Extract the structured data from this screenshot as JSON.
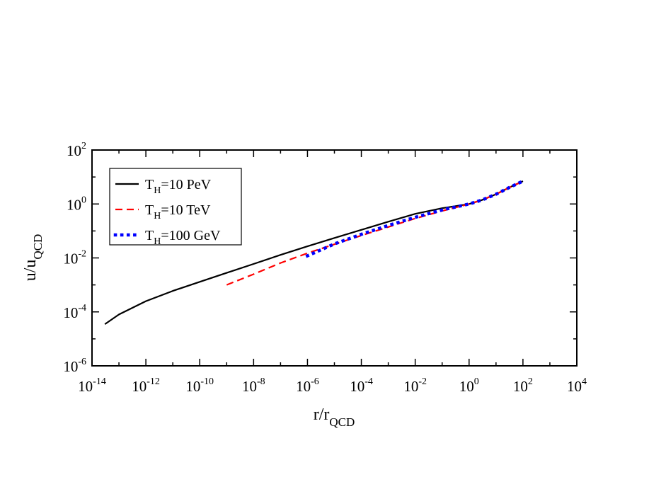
{
  "chart_data": {
    "type": "line",
    "xscale": "log",
    "yscale": "log",
    "xlim": [
      1e-14,
      10000.0
    ],
    "ylim": [
      1e-06,
      100.0
    ],
    "xlabel": {
      "main": "r/r",
      "sub": "QCD"
    },
    "ylabel": {
      "main": "u/u",
      "sub": "QCD"
    },
    "xticks": [
      {
        "value": 1e-14,
        "base": "10",
        "exp": "-14"
      },
      {
        "value": 1e-12,
        "base": "10",
        "exp": "-12"
      },
      {
        "value": 1e-10,
        "base": "10",
        "exp": "-10"
      },
      {
        "value": 1e-08,
        "base": "10",
        "exp": "-8"
      },
      {
        "value": 1e-06,
        "base": "10",
        "exp": "-6"
      },
      {
        "value": 0.0001,
        "base": "10",
        "exp": "-4"
      },
      {
        "value": 0.01,
        "base": "10",
        "exp": "-2"
      },
      {
        "value": 1,
        "base": "10",
        "exp": "0"
      },
      {
        "value": 100.0,
        "base": "10",
        "exp": "2"
      },
      {
        "value": 10000.0,
        "base": "10",
        "exp": "4"
      }
    ],
    "yticks": [
      {
        "value": 1e-06,
        "base": "10",
        "exp": "-6"
      },
      {
        "value": 0.0001,
        "base": "10",
        "exp": "-4"
      },
      {
        "value": 0.01,
        "base": "10",
        "exp": "-2"
      },
      {
        "value": 1,
        "base": "10",
        "exp": "0"
      },
      {
        "value": 100.0,
        "base": "10",
        "exp": "2"
      }
    ],
    "grid": false,
    "legend_position": "top-left",
    "series": [
      {
        "name": "T_H=10 PeV",
        "label_main": "T",
        "label_sub": "H",
        "label_rest": "=10 PeV",
        "color": "#000000",
        "style": "solid",
        "x": [
          3e-14,
          1e-13,
          1e-12,
          1e-11,
          1e-10,
          1e-09,
          1e-08,
          1e-07,
          1e-06,
          1e-05,
          0.0001,
          0.001,
          0.01,
          0.1,
          1,
          3,
          10,
          30,
          100
        ],
        "y": [
          3.5e-05,
          8e-05,
          0.00025,
          0.0006,
          0.0013,
          0.0028,
          0.006,
          0.013,
          0.027,
          0.055,
          0.11,
          0.22,
          0.43,
          0.7,
          1.0,
          1.4,
          2.3,
          4.0,
          7.0
        ]
      },
      {
        "name": "T_H=10 TeV",
        "label_main": "T",
        "label_sub": "H",
        "label_rest": "=10 TeV",
        "color": "#ff0000",
        "style": "dashed",
        "x": [
          1e-09,
          1e-08,
          1e-07,
          1e-06,
          1e-05,
          0.0001,
          0.001,
          0.01,
          0.1,
          1,
          3,
          10,
          30,
          100
        ],
        "y": [
          0.001,
          0.0025,
          0.0065,
          0.015,
          0.032,
          0.068,
          0.14,
          0.29,
          0.55,
          1.0,
          1.4,
          2.3,
          4.0,
          7.0
        ]
      },
      {
        "name": "T_H=100 GeV",
        "label_main": "T",
        "label_sub": "H",
        "label_rest": "=100 GeV",
        "color": "#0000ff",
        "style": "dotted",
        "x": [
          1e-06,
          1e-05,
          0.0001,
          0.001,
          0.01,
          0.1,
          1,
          3,
          10,
          30,
          100
        ],
        "y": [
          0.012,
          0.033,
          0.075,
          0.16,
          0.32,
          0.6,
          1.0,
          1.4,
          2.3,
          4.0,
          7.0
        ]
      }
    ]
  }
}
